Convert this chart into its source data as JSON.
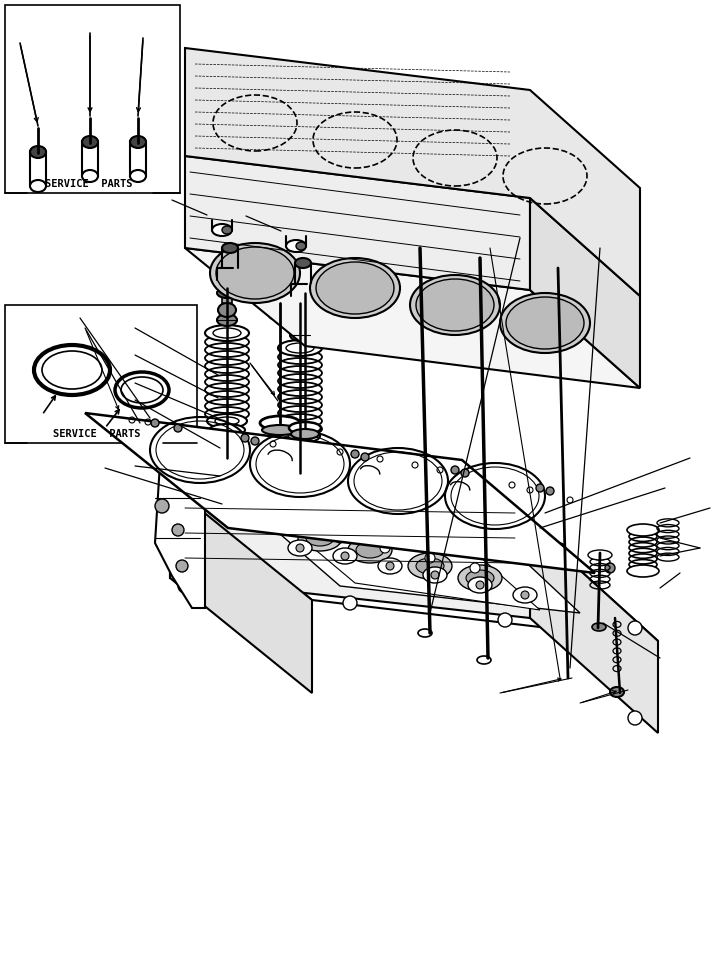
{
  "bg_color": "#ffffff",
  "line_color": "#000000",
  "sp1_label": "SERVICE  PARTS",
  "sp2_label": "SERVICE  PARTS"
}
